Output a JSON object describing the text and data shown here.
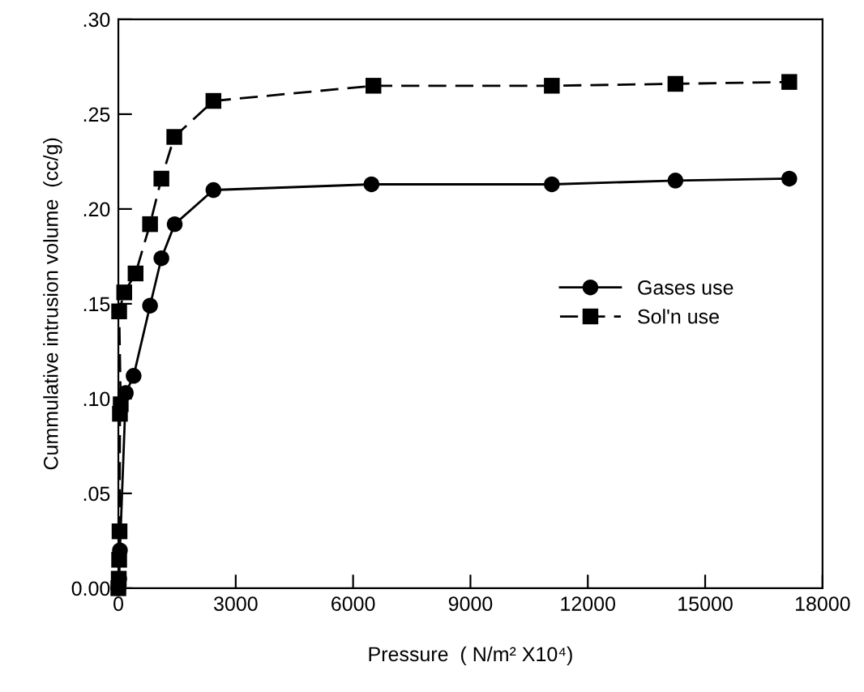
{
  "chart_data": {
    "type": "line",
    "xlabel": "Pressure  ( N/m² X10⁴)",
    "ylabel": "Cummulative intrusion volume  (cc/g)",
    "xlim": [
      0,
      18000
    ],
    "xticks": [
      0,
      3000,
      6000,
      9000,
      12000,
      15000,
      18000
    ],
    "ylim": [
      0,
      0.3
    ],
    "yticks": [
      {
        "value": 0,
        "label": "0.00"
      },
      {
        "value": 0.05,
        "label": ".05"
      },
      {
        "value": 0.1,
        "label": ".10"
      },
      {
        "value": 0.15,
        "label": ".15"
      },
      {
        "value": 0.2,
        "label": ".20"
      },
      {
        "value": 0.25,
        "label": ".25"
      },
      {
        "value": 0.3,
        "label": ".30"
      }
    ],
    "grid": false,
    "legend": "right",
    "series": [
      {
        "name": "Gases use",
        "color": "#000000",
        "marker": "circle",
        "line_style": "solid",
        "x": [
          0,
          20,
          40,
          190,
          390,
          810,
          1100,
          1440,
          2430,
          6470,
          11080,
          14240,
          17150
        ],
        "values": [
          0.0,
          0.005,
          0.02,
          0.103,
          0.112,
          0.149,
          0.174,
          0.192,
          0.21,
          0.213,
          0.213,
          0.215,
          0.216
        ]
      },
      {
        "name": "Sol'n use",
        "color": "#000000",
        "marker": "square",
        "line_style": "dashed",
        "x": [
          0,
          10,
          20,
          30,
          40,
          60,
          20,
          150,
          440,
          810,
          1100,
          1430,
          2430,
          6520,
          11080,
          14240,
          17150
        ],
        "values": [
          0.0,
          0.005,
          0.015,
          0.03,
          0.092,
          0.097,
          0.146,
          0.156,
          0.166,
          0.192,
          0.216,
          0.238,
          0.257,
          0.265,
          0.265,
          0.266,
          0.267
        ]
      }
    ]
  }
}
